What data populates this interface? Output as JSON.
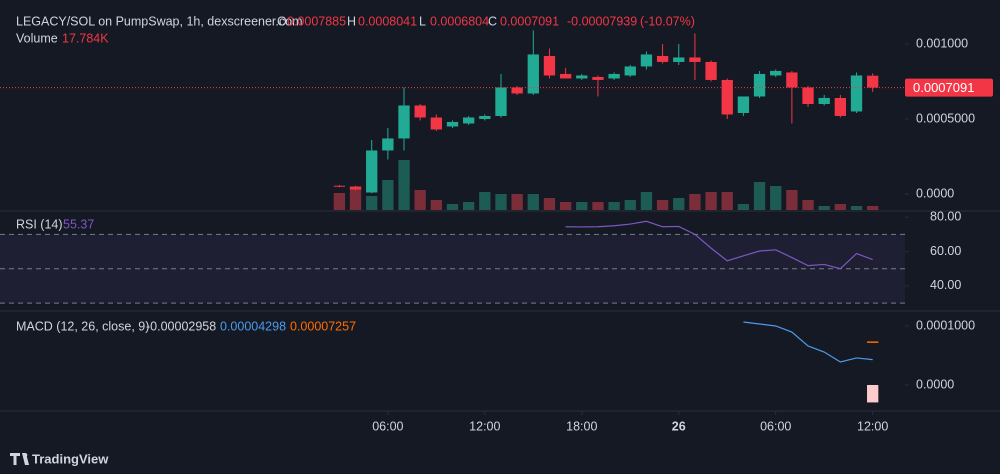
{
  "chart_data": {
    "type": "candlestick",
    "title": "LEGACY/SOL on PumpSwap, 1h, dexscreener.com",
    "ohlc_letters": [
      "O",
      "H",
      "L",
      "C"
    ],
    "change": -7.939e-05,
    "change_pct": {
      "value": -10.07,
      "label": "(-10.07%)"
    },
    "up_color": "#22ab94",
    "down_color": "#f23645",
    "x": [
      3,
      4,
      5,
      6,
      7,
      8,
      9,
      10,
      11,
      12,
      13,
      14,
      15,
      16,
      17,
      18,
      19,
      20,
      21,
      22,
      23,
      24,
      25,
      26,
      27,
      28,
      29,
      30,
      31,
      32,
      33,
      34,
      35,
      36
    ],
    "open": [
      5.5e-05,
      5e-05,
      1e-05,
      0.00029,
      0.00037,
      0.00059,
      0.00051,
      0.00045,
      0.00047,
      0.0005,
      0.00052,
      0.00071,
      0.00067,
      0.00092,
      0.0008,
      0.00077,
      0.00078,
      0.00077,
      0.00079,
      0.00085,
      0.00092,
      0.00088,
      0.00091,
      0.00088,
      0.00076,
      0.00054,
      0.00065,
      0.00079,
      0.00081,
      0.00071,
      0.0006,
      0.00064,
      0.00055,
      0.0007885
    ],
    "high": [
      6e-05,
      5.5e-05,
      0.00036,
      0.00044,
      0.00071,
      0.0006,
      0.00053,
      0.00049,
      0.00052,
      0.00053,
      0.0008,
      0.00072,
      0.00109,
      0.00097,
      0.00084,
      0.0008,
      0.00079,
      0.00081,
      0.00086,
      0.00095,
      0.001,
      0.001,
      0.00107,
      0.00089,
      0.00077,
      0.00065,
      0.00082,
      0.00083,
      0.00082,
      0.00072,
      0.00066,
      0.00066,
      0.00081,
      0.0008041
    ],
    "low": [
      4.5e-05,
      2.5e-05,
      5e-06,
      0.00023,
      0.00029,
      0.00049,
      0.00042,
      0.00044,
      0.00046,
      0.00049,
      0.00051,
      0.00066,
      0.00066,
      0.00077,
      0.00077,
      0.00076,
      0.00065,
      0.00076,
      0.00078,
      0.00083,
      0.00087,
      0.00086,
      0.00076,
      0.00075,
      0.0005,
      0.00052,
      0.00064,
      0.00078,
      0.00047,
      0.00058,
      0.00059,
      0.00051,
      0.00054,
      0.0006804
    ],
    "close": [
      5e-05,
      3e-05,
      0.00029,
      0.00037,
      0.00059,
      0.00051,
      0.00043,
      0.00048,
      0.00051,
      0.00052,
      0.00071,
      0.00067,
      0.00093,
      0.00079,
      0.00077,
      0.00079,
      0.00076,
      0.0008,
      0.00085,
      0.00093,
      0.00088,
      0.00091,
      0.00088,
      0.00076,
      0.00053,
      0.00065,
      0.0008,
      0.00082,
      0.00071,
      0.0006,
      0.00064,
      0.00052,
      0.00079,
      0.0007091
    ],
    "xlim": [
      -18,
      38
    ],
    "xticks": [
      {
        "value": 6,
        "label": "06:00"
      },
      {
        "value": 12,
        "label": "12:00"
      },
      {
        "value": 18,
        "label": "18:00"
      },
      {
        "value": 24,
        "label": "26"
      },
      {
        "value": 30,
        "label": "06:00"
      },
      {
        "value": 36,
        "label": "12:00"
      }
    ],
    "ylim": [
      -0.0001067,
      0.001293
    ],
    "yticks": [
      {
        "value": 0.001,
        "label": "0.001000"
      },
      {
        "value": 0.0005,
        "label": "0.0005000"
      },
      {
        "value": 0,
        "label": "0.0000"
      }
    ],
    "volume": {
      "name": "Volume",
      "readout": {
        "value": 17784,
        "label": "17.784K"
      },
      "ylim": [
        0,
        934000
      ],
      "up_color": "#1d5c54",
      "down_color": "#7b2e39",
      "values": [
        75600,
        97800,
        62200,
        133400,
        222300,
        88900,
        44500,
        26700,
        35600,
        80000,
        71100,
        71100,
        71100,
        53400,
        35600,
        35600,
        35600,
        35600,
        44500,
        80000,
        44500,
        53400,
        71100,
        80000,
        80000,
        26700,
        124500,
        106700,
        88900,
        44500,
        17800,
        26700,
        17800,
        17784
      ]
    },
    "rsi": {
      "name": "RSI (14)",
      "color": "#7e57c2",
      "ylim": [
        26,
        83
      ],
      "levels": [
        70,
        50,
        30
      ],
      "yticks": [
        {
          "value": 80,
          "label": "80.00"
        },
        {
          "value": 60,
          "label": "60.00"
        },
        {
          "value": 40,
          "label": "40.00"
        }
      ],
      "values": [
        null,
        null,
        null,
        null,
        null,
        null,
        null,
        null,
        null,
        null,
        null,
        null,
        null,
        null,
        74.4,
        74.3,
        74.4,
        75,
        76,
        77.6,
        74.4,
        74.6,
        70,
        62,
        54.6,
        57.5,
        60.3,
        61,
        56.5,
        51.8,
        52.5,
        50,
        58.8,
        55.37
      ]
    },
    "macd": {
      "name": "MACD (12, 26, close, 9)",
      "ylim": [
        -4.24e-05,
        0.0001237
      ],
      "yticks": [
        {
          "value": 0.0001,
          "label": "0.0001000"
        },
        {
          "value": 0,
          "label": "0.0000"
        }
      ],
      "histogram_color": "#fccbcd",
      "macd_color": "#4c9be8",
      "signal_color": "#ff6d00",
      "histogram": [
        null,
        null,
        null,
        null,
        null,
        null,
        null,
        null,
        null,
        null,
        null,
        null,
        null,
        null,
        null,
        null,
        null,
        null,
        null,
        null,
        null,
        null,
        null,
        null,
        null,
        null,
        null,
        null,
        null,
        null,
        null,
        null,
        null,
        -2.958e-05
      ],
      "macd": [
        null,
        null,
        null,
        null,
        null,
        null,
        null,
        null,
        null,
        null,
        null,
        null,
        null,
        null,
        null,
        null,
        null,
        null,
        null,
        null,
        null,
        null,
        null,
        null,
        null,
        0.0001068,
        0.0001034,
        0.0001,
        8.98e-05,
        6.61e-05,
        5.59e-05,
        3.9e-05,
        4.58e-05,
        4.298e-05
      ],
      "signal": [
        null,
        null,
        null,
        null,
        null,
        null,
        null,
        null,
        null,
        null,
        null,
        null,
        null,
        null,
        null,
        null,
        null,
        null,
        null,
        null,
        null,
        null,
        null,
        null,
        null,
        null,
        null,
        null,
        null,
        null,
        null,
        null,
        null,
        7.257e-05
      ]
    }
  },
  "footer": {
    "brand": "TradingView"
  }
}
